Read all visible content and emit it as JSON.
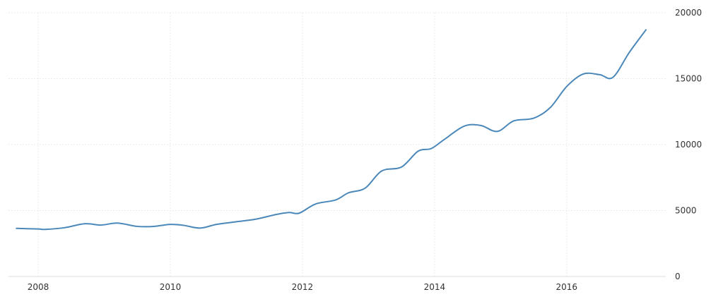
{
  "chart_data": {
    "type": "line",
    "title": "",
    "xlabel": "",
    "ylabel": "",
    "x_ticks": [
      "2008",
      "2010",
      "2012",
      "2014",
      "2016"
    ],
    "y_ticks": [
      "0",
      "5000",
      "10000",
      "15000",
      "20000"
    ],
    "ylim": [
      0,
      20000
    ],
    "xlim": [
      2007.55,
      2017.5
    ],
    "grid": true,
    "y_axis_side": "right",
    "color": "#4b88ba",
    "series": [
      {
        "x": [
          2007.67,
          2008.0,
          2008.1,
          2008.4,
          2008.7,
          2008.95,
          2009.2,
          2009.5,
          2009.75,
          2010.0,
          2010.2,
          2010.45,
          2010.7,
          2011.0,
          2011.3,
          2011.6,
          2011.8,
          2011.95,
          2012.2,
          2012.5,
          2012.7,
          2012.95,
          2013.2,
          2013.5,
          2013.75,
          2013.95,
          2014.15,
          2014.45,
          2014.7,
          2014.95,
          2015.2,
          2015.5,
          2015.75,
          2016.0,
          2016.25,
          2016.5,
          2016.7,
          2016.95,
          2017.2
        ],
        "values": [
          3650,
          3600,
          3570,
          3700,
          4000,
          3900,
          4050,
          3800,
          3800,
          3950,
          3880,
          3670,
          3950,
          4150,
          4350,
          4700,
          4850,
          4800,
          5500,
          5800,
          6350,
          6700,
          8000,
          8300,
          9500,
          9700,
          10400,
          11400,
          11450,
          11000,
          11800,
          12000,
          12800,
          14400,
          15350,
          15300,
          15100,
          17000,
          18700
        ]
      }
    ]
  }
}
